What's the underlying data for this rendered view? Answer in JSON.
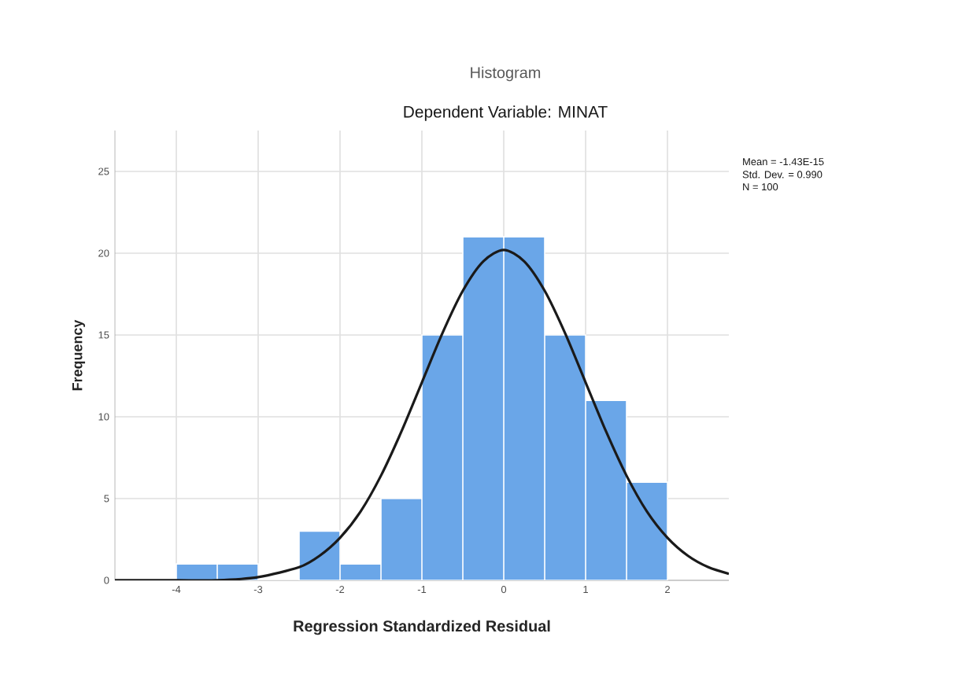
{
  "chart_data": {
    "type": "histogram",
    "title": "Histogram",
    "subtitle": "Dependent Variable: MINAT",
    "xlabel": "Regression Standardized Residual",
    "ylabel": "Frequency",
    "bins": [
      -4,
      -3.5,
      -3,
      -2.5,
      -2,
      -1.5,
      -1,
      -0.5,
      0,
      0.5,
      1,
      1.5,
      2
    ],
    "values": [
      1,
      1,
      0,
      3,
      1,
      5,
      15,
      21,
      21,
      15,
      11,
      6
    ],
    "color": "#6aa6e8",
    "series": [
      {
        "type": "line",
        "color": "#1a1a1a",
        "marker": "none",
        "x": [
          -4.75,
          -4,
          -3.5,
          -3,
          -2.5,
          -2.25,
          -2,
          -1.75,
          -1.5,
          -1.25,
          -1,
          -0.75,
          -0.5,
          -0.25,
          0,
          0.25,
          0.5,
          0.75,
          1,
          1.25,
          1.5,
          1.75,
          2,
          2.25,
          2.5,
          2.75
        ],
        "values": [
          0,
          0,
          0,
          0.2,
          0.8,
          1.5,
          2.6,
          4.2,
          6.4,
          9.1,
          12.1,
          15.1,
          17.7,
          19.5,
          20.2,
          19.5,
          17.7,
          15.1,
          12.1,
          9.1,
          6.4,
          4.2,
          2.6,
          1.5,
          0.8,
          0.4
        ]
      }
    ],
    "xlim": [
      -4.75,
      2.75
    ],
    "ylim": [
      0,
      27.5
    ],
    "xticks": [
      -4,
      -3,
      -2,
      -1,
      0,
      1,
      2
    ],
    "yticks": [
      0,
      5,
      10,
      15,
      20,
      25
    ],
    "grid": true,
    "annotations": [
      "Mean = -1.43E-15",
      "Std. Dev. = 0.990",
      "N = 100"
    ]
  }
}
